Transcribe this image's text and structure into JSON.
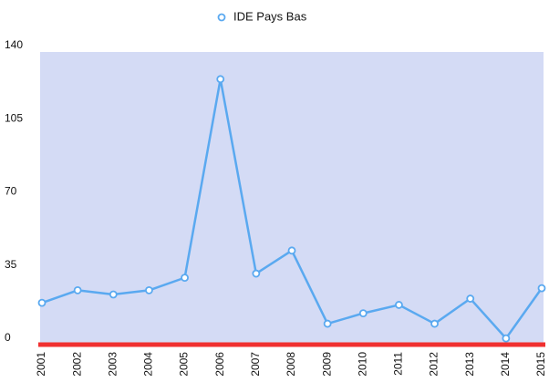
{
  "chart_data": {
    "type": "line",
    "categories": [
      "2001",
      "2002",
      "2003",
      "2004",
      "2005",
      "2006",
      "2007",
      "2008",
      "2009",
      "2010",
      "2011",
      "2012",
      "2013",
      "2014",
      "2015"
    ],
    "series": [
      {
        "name": "IDE Pays Bas",
        "color": "#5aa9f0",
        "values": [
          20,
          26,
          24,
          26,
          32,
          127,
          34,
          45,
          10,
          15,
          19,
          10,
          22,
          3,
          27
        ]
      }
    ],
    "ylim": [
      0,
      140
    ],
    "yticks": [
      0,
      35,
      70,
      105,
      140
    ],
    "grid": false,
    "plot_background": "#d4dbf5",
    "baseline_color": "#f03030",
    "legend": "top"
  }
}
